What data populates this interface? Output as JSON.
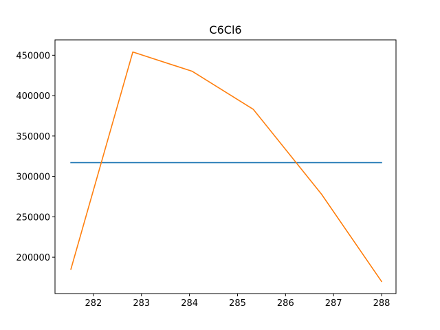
{
  "chart_data": {
    "type": "line",
    "title": "C6Cl6",
    "xlabel": "",
    "ylabel": "",
    "xlim": [
      281.2,
      288.3
    ],
    "ylim": [
      155000,
      469000
    ],
    "xticks": [
      282,
      283,
      284,
      285,
      286,
      287,
      288
    ],
    "yticks": [
      200000,
      250000,
      300000,
      350000,
      400000,
      450000
    ],
    "grid": false,
    "series": [
      {
        "color": "#1f77b4",
        "x": [
          281.53,
          288.0
        ],
        "y": [
          317000,
          317000
        ]
      },
      {
        "color": "#ff7f0e",
        "x": [
          281.53,
          282.82,
          284.06,
          285.33,
          286.75,
          288.0
        ],
        "y": [
          185000,
          454000,
          430000,
          383000,
          278000,
          170000
        ]
      }
    ]
  }
}
